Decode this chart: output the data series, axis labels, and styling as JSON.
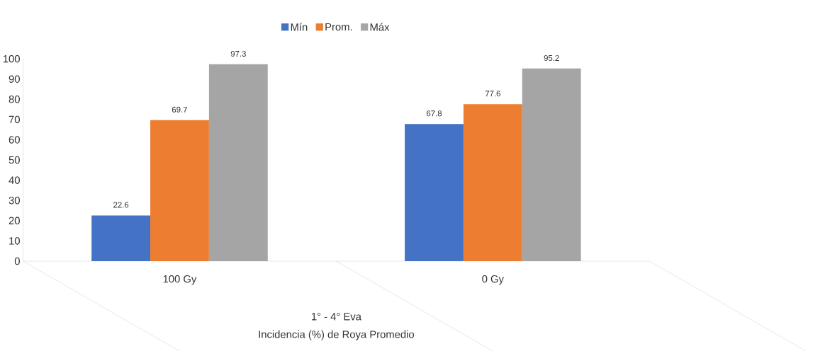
{
  "chart_data": {
    "type": "bar",
    "categories": [
      "100 Gy",
      "0 Gy"
    ],
    "series": [
      {
        "name": "Mín",
        "color": "#4472c4",
        "values": [
          22.6,
          67.8
        ]
      },
      {
        "name": "Prom.",
        "color": "#ed7d31",
        "values": [
          69.7,
          77.6
        ]
      },
      {
        "name": "Máx",
        "color": "#a5a5a5",
        "values": [
          97.3,
          95.2
        ]
      }
    ],
    "ylim": [
      0,
      100
    ],
    "yticks": [
      0,
      10,
      20,
      30,
      40,
      50,
      60,
      70,
      80,
      90,
      100
    ],
    "data_labels": true,
    "legend": "top",
    "grid": false,
    "xlabel": "1° - 4° Eva",
    "annotations": [
      "Incidencia (%) de Roya Promedio"
    ]
  }
}
